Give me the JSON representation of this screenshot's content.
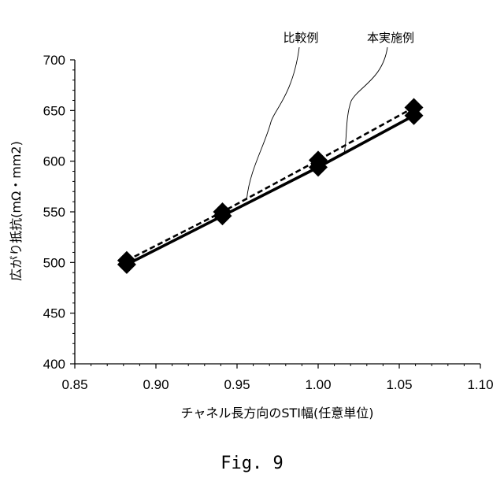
{
  "chart_data": {
    "type": "line",
    "xlabel": "チャネル長方向のSTI幅(任意単位)",
    "ylabel": "広がり抵抗(mΩ・mm2)",
    "xlim": [
      0.85,
      1.1
    ],
    "ylim": [
      400,
      700
    ],
    "xticks": [
      "0.85",
      "0.90",
      "0.95",
      "1.00",
      "1.05",
      "1.10"
    ],
    "yticks": [
      "400",
      "450",
      "500",
      "550",
      "600",
      "650",
      "700"
    ],
    "grid": false,
    "legend": "none",
    "series": [
      {
        "name": "本実施例",
        "style": "solid",
        "color": "#000000",
        "x": [
          0.882,
          0.941,
          1.0,
          1.059
        ],
        "y": [
          498,
          546,
          594,
          645
        ]
      },
      {
        "name": "比較例",
        "style": "dashed",
        "color": "#000000",
        "x": [
          0.882,
          0.941,
          1.0,
          1.059
        ],
        "y": [
          502,
          550,
          601,
          653
        ]
      }
    ]
  },
  "caption": "Fig. 9"
}
